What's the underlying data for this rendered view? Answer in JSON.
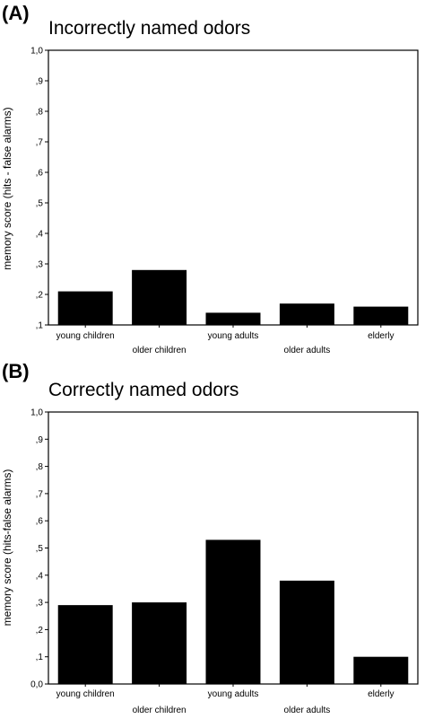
{
  "chart_data": [
    {
      "panel_label": "(A)",
      "type": "bar",
      "title": "Incorrectly named odors",
      "xlabel": "",
      "ylabel": "memory score (hits - false alarms)",
      "categories": [
        "young children",
        "older children",
        "young adults",
        "older adults",
        "elderly"
      ],
      "values": [
        0.21,
        0.28,
        0.14,
        0.17,
        0.16
      ],
      "ylim": [
        0.1,
        1.0
      ],
      "yticks": [
        ",1",
        ",2",
        ",3",
        ",4",
        ",5",
        ",6",
        ",7",
        ",8",
        ",9",
        "1,0"
      ],
      "bar_color": "#000000",
      "grid": false
    },
    {
      "panel_label": "(B)",
      "type": "bar",
      "title": "Correctly named odors",
      "xlabel": "",
      "ylabel": "memory score (hits-false alarms)",
      "categories": [
        "young children",
        "older children",
        "young adults",
        "older adults",
        "elderly"
      ],
      "values": [
        0.29,
        0.3,
        0.53,
        0.38,
        0.1
      ],
      "ylim": [
        0.0,
        1.0
      ],
      "yticks": [
        "0,0",
        ",1",
        ",2",
        ",3",
        ",4",
        ",5",
        ",6",
        ",7",
        ",8",
        ",9",
        "1,0"
      ],
      "bar_color": "#000000",
      "grid": false
    }
  ]
}
